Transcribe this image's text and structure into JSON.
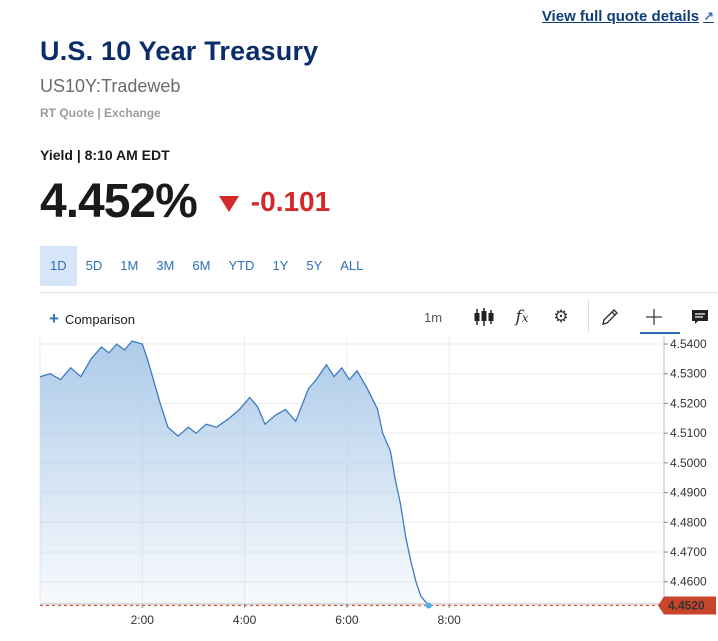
{
  "header": {
    "quote_link": "View full quote details",
    "title": "U.S. 10 Year Treasury",
    "symbol": "US10Y:Tradeweb",
    "source": "RT Quote | Exchange"
  },
  "quote": {
    "yield_time": "Yield | 8:10 AM EDT",
    "price": "4.452%",
    "change": "-0.101",
    "direction": "down",
    "change_color": "#d22a2a"
  },
  "ranges": [
    "1D",
    "5D",
    "1M",
    "3M",
    "6M",
    "YTD",
    "1Y",
    "5Y",
    "ALL"
  ],
  "active_range": "1D",
  "toolbar": {
    "comparison_label": "Comparison",
    "interval_label": "1m",
    "icons": [
      "candlestick-icon",
      "fx-icon",
      "gear-icon",
      "pencil-icon",
      "crosshair-icon",
      "comment-icon"
    ]
  },
  "chart_data": {
    "type": "area",
    "x_ticks": [
      "2:00",
      "4:00",
      "6:00",
      "8:00"
    ],
    "y_ticks": [
      "4.5400",
      "4.5300",
      "4.5200",
      "4.5100",
      "4.5000",
      "4.4900",
      "4.4800",
      "4.4700",
      "4.4600"
    ],
    "ylim": [
      4.4525,
      4.5427
    ],
    "last_value_label": "4.4520",
    "last_value": 4.452,
    "line_color": "#3d7cc0",
    "fill_color": "#a9c8e8",
    "marker_color": "#d9603b",
    "series": [
      {
        "t": 0.0,
        "v": 4.529
      },
      {
        "t": 0.2,
        "v": 4.53
      },
      {
        "t": 0.4,
        "v": 4.528
      },
      {
        "t": 0.6,
        "v": 4.532
      },
      {
        "t": 0.8,
        "v": 4.529
      },
      {
        "t": 1.0,
        "v": 4.535
      },
      {
        "t": 1.2,
        "v": 4.539
      },
      {
        "t": 1.35,
        "v": 4.537
      },
      {
        "t": 1.5,
        "v": 4.54
      },
      {
        "t": 1.65,
        "v": 4.538
      },
      {
        "t": 1.8,
        "v": 4.541
      },
      {
        "t": 2.0,
        "v": 4.54
      },
      {
        "t": 2.1,
        "v": 4.535
      },
      {
        "t": 2.2,
        "v": 4.529
      },
      {
        "t": 2.35,
        "v": 4.52
      },
      {
        "t": 2.5,
        "v": 4.512
      },
      {
        "t": 2.7,
        "v": 4.509
      },
      {
        "t": 2.9,
        "v": 4.512
      },
      {
        "t": 3.05,
        "v": 4.51
      },
      {
        "t": 3.25,
        "v": 4.513
      },
      {
        "t": 3.45,
        "v": 4.512
      },
      {
        "t": 3.7,
        "v": 4.515
      },
      {
        "t": 3.9,
        "v": 4.518
      },
      {
        "t": 4.1,
        "v": 4.522
      },
      {
        "t": 4.25,
        "v": 4.519
      },
      {
        "t": 4.4,
        "v": 4.513
      },
      {
        "t": 4.6,
        "v": 4.516
      },
      {
        "t": 4.8,
        "v": 4.518
      },
      {
        "t": 5.0,
        "v": 4.514
      },
      {
        "t": 5.25,
        "v": 4.525
      },
      {
        "t": 5.4,
        "v": 4.528
      },
      {
        "t": 5.6,
        "v": 4.533
      },
      {
        "t": 5.75,
        "v": 4.529
      },
      {
        "t": 5.9,
        "v": 4.532
      },
      {
        "t": 6.05,
        "v": 4.528
      },
      {
        "t": 6.2,
        "v": 4.531
      },
      {
        "t": 6.4,
        "v": 4.525
      },
      {
        "t": 6.6,
        "v": 4.518
      },
      {
        "t": 6.7,
        "v": 4.51
      },
      {
        "t": 6.85,
        "v": 4.504
      },
      {
        "t": 6.95,
        "v": 4.494
      },
      {
        "t": 7.05,
        "v": 4.486
      },
      {
        "t": 7.15,
        "v": 4.475
      },
      {
        "t": 7.25,
        "v": 4.467
      },
      {
        "t": 7.35,
        "v": 4.46
      },
      {
        "t": 7.45,
        "v": 4.455
      },
      {
        "t": 7.55,
        "v": 4.453
      },
      {
        "t": 7.6,
        "v": 4.452
      }
    ],
    "x_tick_values": [
      2,
      4,
      6,
      8
    ]
  }
}
